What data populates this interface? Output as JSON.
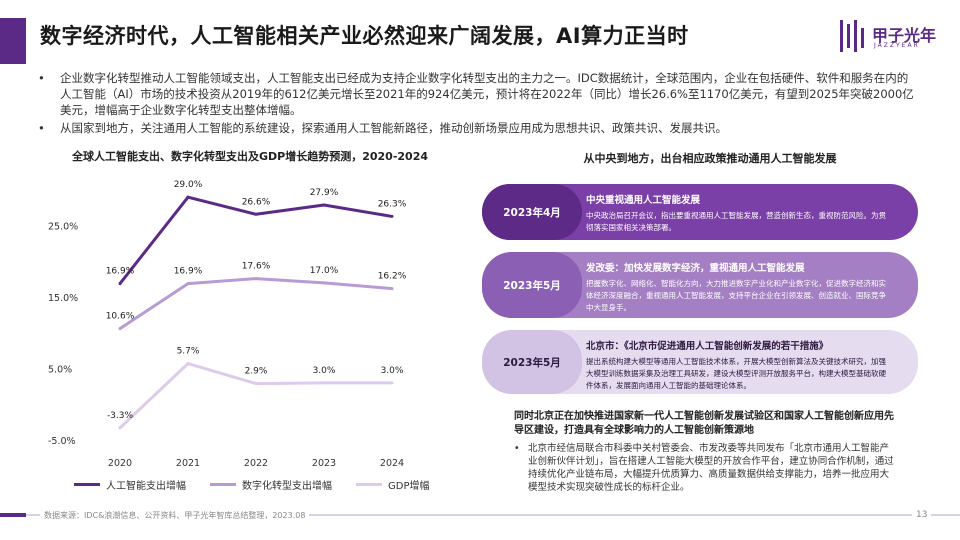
{
  "header": {
    "title": "数字经济时代，人工智能相关产业必然迎来广阔发展，AI算力正当时",
    "logo_text": "甲子光年",
    "logo_sub": "JAZZYEAR"
  },
  "bullets": [
    "企业数字化转型推动人工智能领域支出，人工智能支出已经成为支持企业数字化转型支出的主力之一。IDC数据统计，全球范围内，企业在包括硬件、软件和服务在内的人工智能（AI）市场的技术投资从2019年的612亿美元增长至2021年的924亿美元，预计将在2022年（同比）增长26.6%至1170亿美元，有望到2025年突破2000亿美元，增幅高于企业数字化转型支出整体增幅。",
    "从国家到地方，关注通用人工智能的系统建设，探索通用人工智能新路径，推动创新场景应用成为思想共识、政策共识、发展共识。"
  ],
  "chart_data": {
    "type": "line",
    "title": "全球人工智能支出、数字化转型支出及GDP增长趋势预测，2020-2024",
    "categories": [
      "2020",
      "2021",
      "2022",
      "2023",
      "2024"
    ],
    "y_ticks": [
      "25.0%",
      "15.0%",
      "5.0%",
      "-5.0%"
    ],
    "ylim": [
      -5,
      30
    ],
    "grid": false,
    "legend": "bottom",
    "series": [
      {
        "name": "人工智能支出增幅",
        "color": "#5b2a86",
        "values": [
          16.9,
          29.0,
          26.6,
          27.9,
          26.3
        ],
        "labels": [
          "16.9%",
          "29.0%",
          "26.6%",
          "27.9%",
          "26.3%"
        ]
      },
      {
        "name": "数字化转型支出增幅",
        "color": "#b89bd4",
        "values": [
          10.6,
          16.9,
          17.6,
          17.0,
          16.2
        ],
        "labels": [
          "10.6%",
          "16.9%",
          "17.6%",
          "17.0%",
          "16.2%"
        ]
      },
      {
        "name": "GDP增幅",
        "color": "#dccbea",
        "values": [
          -3.3,
          5.7,
          2.9,
          3.0,
          3.0
        ],
        "labels": [
          "-3.3%",
          "5.7%",
          "2.9%",
          "3.0%",
          "3.0%"
        ]
      }
    ]
  },
  "policy_section": {
    "title": "从中央到地方，出台相应政策推动通用人工智能发展",
    "items": [
      {
        "date": "2023年4月",
        "title": "中央重视通用人工智能发展",
        "body": "中央政治局召开会议，指出要重视通用人工智能发展，营造创新生态，重视防范风险。为贯彻落实国家相关决策部署。"
      },
      {
        "date": "2023年5月",
        "title": "发改委：加快发展数字经济，重视通用人工智能发展",
        "body": "把握数字化、网络化、智能化方向，大力推进数字产业化和产业数字化，促进数字经济和实体经济深度融合，重视通用人工智能发展，支持平台企业在引领发展、创造就业、国际竞争中大显身手。"
      },
      {
        "date": "2023年5月",
        "title": "北京市：《北京市促进通用人工智能创新发展的若干措施》",
        "body": "提出系统构建大模型等通用人工智能技术体系，开展大模型创新算法及关键技术研究，加强大模型训练数据采集及治理工具研发，建设大模型评测开放服务平台，构建大模型基础软硬件体系，发展面向通用人工智能的基础理论体系。"
      }
    ],
    "beijing_title": "同时北京正在加快推进国家新一代人工智能创新发展试验区和国家人工智能创新应用先导区建设，打造具有全球影响力的人工智能创新策源地",
    "beijing_bullet": "北京市经信局联合市科委中关村管委会、市发改委等共同发布「北京市通用人工智能产业创新伙伴计划」，旨在搭建人工智能大模型的开放合作平台，建立协同合作机制，通过持续优化产业链布局，大幅提升优质算力、高质量数据供给支撑能力，培养一批应用大模型技术实现突破性成长的标杆企业。"
  },
  "footer": {
    "source": "数据来源：IDC&浪潮信息、公开资料、甲子光年智库总结整理，2023.08",
    "page": "13"
  }
}
